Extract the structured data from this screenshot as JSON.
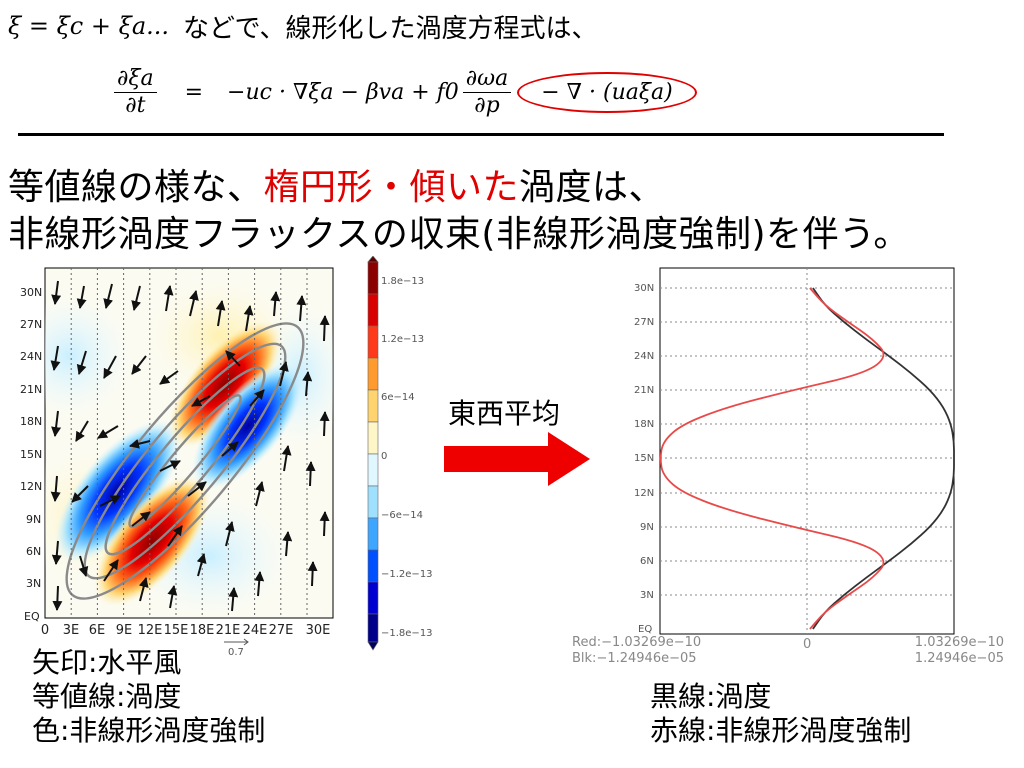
{
  "top": {
    "intro_math": "ξ = ξc + ξa...",
    "intro_text": "などで、線形化した渦度方程式は、"
  },
  "equation": {
    "lhs_num": "∂ξa",
    "lhs_den": "∂t",
    "eq": "=",
    "term1": "−uc · ∇ξa − βva + f0",
    "frac_num": "∂ωa",
    "frac_den": "∂p",
    "circled": "− ∇ · (uaξa)"
  },
  "headline": {
    "line1_a": "等値線の様な、",
    "line1_red": "楕円形・傾いた",
    "line1_b": "渦度は、",
    "line2": "非線形渦度フラックスの収束(非線形渦度強制)を伴う。"
  },
  "arrow_label": "東西平均",
  "colors": {
    "accent_red": "#e00000",
    "arrow_red": "#ee0000",
    "curve_black": "#333333",
    "curve_red": "#e84a4a"
  },
  "left_map": {
    "y_ticks": [
      "30N",
      "27N",
      "24N",
      "21N",
      "18N",
      "15N",
      "12N",
      "9N",
      "6N",
      "3N",
      "EQ"
    ],
    "x_ticks": [
      "0",
      "3E",
      "6E",
      "9E",
      "12E",
      "15E",
      "18E",
      "21E",
      "24E",
      "27E",
      "30E"
    ],
    "vector_ref": "0.7",
    "colorbar_labels": [
      "1.8e−13",
      "1.2e−13",
      "6e−14",
      "0",
      "−6e−14",
      "−1.2e−13",
      "−1.8e−13"
    ]
  },
  "right_plot": {
    "y_ticks": [
      "30N",
      "27N",
      "24N",
      "21N",
      "18N",
      "15N",
      "12N",
      "9N",
      "6N",
      "3N",
      "EQ"
    ],
    "x_min_label": "0",
    "red_range": "Red:−1.03269e−10",
    "blk_range": "Blk:−1.24946e−05",
    "red_max": "1.03269e−10",
    "blk_max": "1.24946e−05"
  },
  "chart_data": [
    {
      "type": "heatmap",
      "xlabel": "",
      "ylabel": "",
      "x_categories": [
        "0",
        "3E",
        "6E",
        "9E",
        "12E",
        "15E",
        "18E",
        "21E",
        "24E",
        "27E",
        "30E"
      ],
      "y_categories": [
        "EQ",
        "3N",
        "6N",
        "9N",
        "12N",
        "15N",
        "18N",
        "21N",
        "24N",
        "27N",
        "30N"
      ],
      "colorbar_ticks": [
        -1.8e-13,
        -1.2e-13,
        -6e-14,
        0,
        6e-14,
        1.2e-13,
        1.8e-13
      ],
      "features": [
        {
          "sign": "positive",
          "center_lon": 9,
          "center_lat": 8,
          "max": 1.8e-13
        },
        {
          "sign": "negative",
          "center_lon": 6,
          "center_lat": 13,
          "min": -1.8e-13
        },
        {
          "sign": "positive",
          "center_lon": 16,
          "center_lat": 22,
          "max": 1.8e-13
        },
        {
          "sign": "negative",
          "center_lon": 21,
          "center_lat": 18,
          "min": -1.8e-13
        }
      ]
    },
    {
      "type": "line",
      "y": [
        0,
        1.5,
        3,
        4.5,
        6,
        7.5,
        9,
        10.5,
        12,
        13.5,
        15,
        16.5,
        18,
        19.5,
        21,
        22.5,
        24,
        25.5,
        27,
        28.5,
        30
      ],
      "series": [
        {
          "color": "black",
          "x": [
            0.04,
            0.12,
            0.25,
            0.4,
            0.56,
            0.71,
            0.84,
            0.93,
            0.98,
            1.0,
            1.0,
            1.0,
            0.98,
            0.93,
            0.84,
            0.71,
            0.56,
            0.4,
            0.25,
            0.12,
            0.04
          ]
        },
        {
          "color": "red",
          "x": [
            0.02,
            0.12,
            0.28,
            0.45,
            0.55,
            0.4,
            -0.1,
            -0.55,
            -0.85,
            -0.98,
            -1.0,
            -0.98,
            -0.85,
            -0.55,
            -0.1,
            0.4,
            0.55,
            0.45,
            0.28,
            0.12,
            0.02
          ]
        }
      ],
      "ylabel": "",
      "ylim": [
        0,
        30
      ],
      "x_range_red": [
        -1.03269e-10,
        1.03269e-10
      ],
      "x_range_black": [
        -1.24946e-05,
        1.24946e-05
      ]
    }
  ],
  "captions": {
    "left1": "矢印:水平風",
    "left2": "等値線:渦度",
    "left3": "色:非線形渦度強制",
    "right1": "黒線:渦度",
    "right2": "赤線:非線形渦度強制"
  }
}
